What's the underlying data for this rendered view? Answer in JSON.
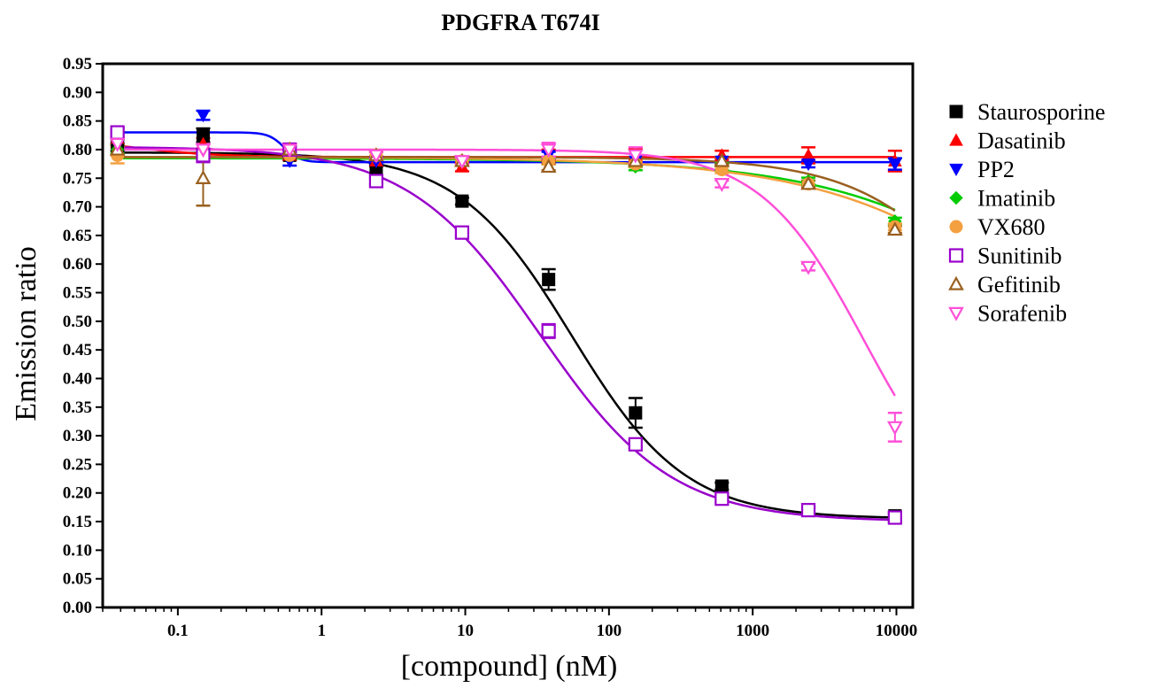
{
  "chart_data": {
    "type": "scatter",
    "title": "PDGFRA T674I",
    "xlabel": "[compound] (nM)",
    "ylabel": "Emission ratio",
    "xscale": "log",
    "xlim": [
      0.03,
      13000
    ],
    "ylim": [
      0.0,
      0.95
    ],
    "x_ticks": [
      0.1,
      1,
      10,
      100,
      1000,
      10000
    ],
    "x_tick_labels": [
      "0.1",
      "1",
      "10",
      "100",
      "1000",
      "10000"
    ],
    "y_ticks": [
      0.0,
      0.05,
      0.1,
      0.15,
      0.2,
      0.25,
      0.3,
      0.35,
      0.4,
      0.45,
      0.5,
      0.55,
      0.6,
      0.65,
      0.7,
      0.75,
      0.8,
      0.85,
      0.9,
      0.95
    ],
    "y_tick_labels": [
      "0.00",
      "0.05",
      "0.10",
      "0.15",
      "0.20",
      "0.25",
      "0.30",
      "0.35",
      "0.40",
      "0.45",
      "0.50",
      "0.55",
      "0.60",
      "0.65",
      "0.70",
      "0.75",
      "0.80",
      "0.85",
      "0.90",
      "0.95"
    ],
    "grid": false,
    "legend_position": "right",
    "x": [
      0.038,
      0.15,
      0.6,
      2.4,
      9.5,
      38,
      153,
      610,
      2440,
      9770
    ],
    "series": [
      {
        "name": "Staurosporine",
        "color": "#000000",
        "marker": "square-filled",
        "values": [
          0.808,
          0.825,
          0.79,
          0.763,
          0.71,
          0.573,
          0.34,
          0.212,
          0.17,
          0.16
        ],
        "errors": [
          0.01,
          0.012,
          0.008,
          0.008,
          0.006,
          0.018,
          0.026,
          0.006,
          0.005,
          0.006
        ],
        "fit": {
          "top": 0.795,
          "bottom": 0.155,
          "ec50": 55,
          "hill": 1.1
        }
      },
      {
        "name": "Dasatinib",
        "color": "#ff0000",
        "marker": "triangle-up-filled",
        "values": [
          0.82,
          0.81,
          0.79,
          0.78,
          0.77,
          0.79,
          0.79,
          0.79,
          0.79,
          0.78
        ],
        "errors": [
          0.012,
          0.01,
          0.008,
          0.008,
          0.008,
          0.01,
          0.012,
          0.008,
          0.014,
          0.018
        ],
        "fit": {
          "flat": 0.787,
          "start": 0.82
        }
      },
      {
        "name": "PP2",
        "color": "#0000ff",
        "marker": "triangle-down-filled",
        "values": [
          0.82,
          0.86,
          0.78,
          0.78,
          0.78,
          0.79,
          0.78,
          0.78,
          0.775,
          0.775
        ],
        "errors": [
          0.008,
          0.008,
          0.008,
          0.006,
          0.006,
          0.006,
          0.006,
          0.006,
          0.006,
          0.01
        ],
        "fit": {
          "top": 0.83,
          "bottom": 0.778,
          "ec50": 0.55,
          "hill": 8
        }
      },
      {
        "name": "Imatinib",
        "color": "#00cc00",
        "marker": "diamond-filled",
        "values": [
          0.8,
          0.795,
          0.8,
          0.79,
          0.78,
          0.78,
          0.77,
          0.77,
          0.745,
          0.675
        ],
        "errors": [
          0.006,
          0.006,
          0.006,
          0.006,
          0.006,
          0.006,
          0.006,
          0.006,
          0.006,
          0.006
        ],
        "fit": {
          "top": 0.785,
          "bottom": 0.0,
          "ec50": 400000,
          "hill": 0.55
        }
      },
      {
        "name": "VX680",
        "color": "#f4a040",
        "marker": "circle-filled",
        "values": [
          0.79,
          0.79,
          0.79,
          0.79,
          0.78,
          0.78,
          0.775,
          0.765,
          0.74,
          0.665
        ],
        "errors": [
          0.014,
          0.006,
          0.006,
          0.006,
          0.006,
          0.006,
          0.006,
          0.006,
          0.006,
          0.006
        ],
        "fit": {
          "top": 0.787,
          "bottom": 0.0,
          "ec50": 300000,
          "hill": 0.55
        }
      },
      {
        "name": "Sunitinib",
        "color": "#9a00cc",
        "marker": "square-open",
        "values": [
          0.83,
          0.79,
          0.8,
          0.745,
          0.655,
          0.483,
          0.285,
          0.19,
          0.17,
          0.157
        ],
        "errors": [
          0.008,
          0.012,
          0.006,
          0.006,
          0.006,
          0.012,
          0.006,
          0.006,
          0.005,
          0.006
        ],
        "fit": {
          "top": 0.805,
          "bottom": 0.15,
          "ec50": 33,
          "hill": 0.95
        }
      },
      {
        "name": "Gefitinib",
        "color": "#9a6020",
        "marker": "triangle-up-open",
        "values": [
          0.8,
          0.75,
          0.8,
          0.79,
          0.78,
          0.77,
          0.78,
          0.78,
          0.74,
          0.66
        ],
        "errors": [
          0.01,
          0.048,
          0.008,
          0.006,
          0.006,
          0.006,
          0.006,
          0.006,
          0.006,
          0.006
        ],
        "fit": {
          "top": 0.787,
          "bottom": 0.0,
          "ec50": 90000,
          "hill": 0.9
        }
      },
      {
        "name": "Sorafenib",
        "color": "#ff4fd8",
        "marker": "triangle-down-open",
        "values": [
          0.81,
          0.8,
          0.8,
          0.79,
          0.78,
          0.8,
          0.79,
          0.74,
          0.595,
          0.315
        ],
        "errors": [
          0.01,
          0.01,
          0.01,
          0.006,
          0.006,
          0.012,
          0.014,
          0.006,
          0.006,
          0.025
        ],
        "fit": {
          "top": 0.8,
          "bottom": 0.13,
          "ec50": 6000,
          "hill": 1.2
        }
      }
    ]
  }
}
